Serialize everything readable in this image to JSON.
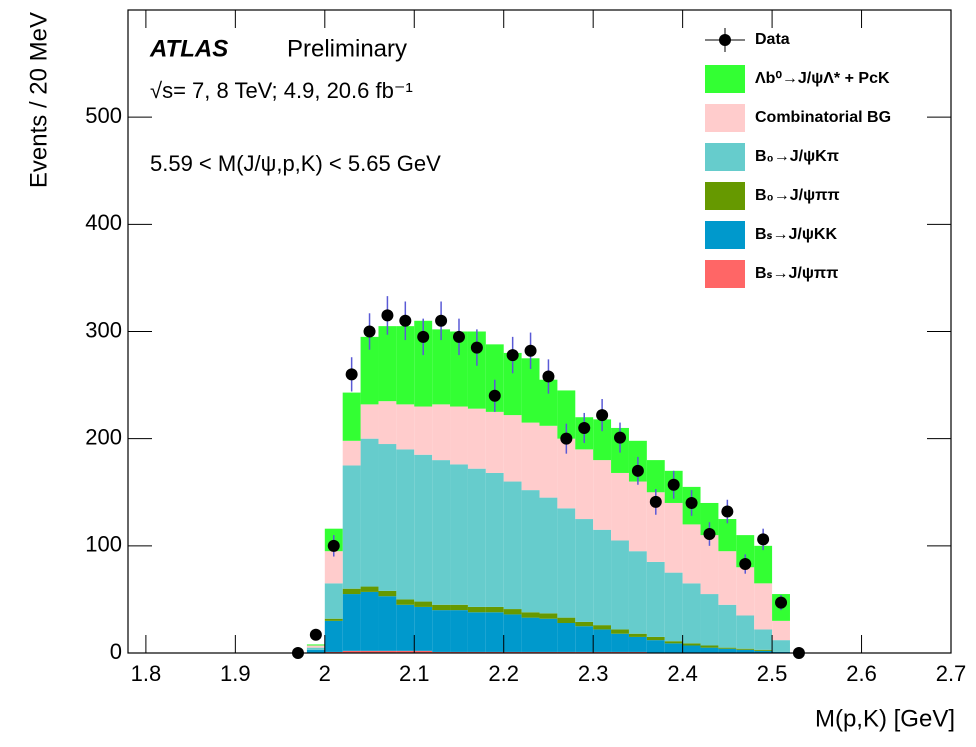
{
  "chart_data": {
    "type": "histogram",
    "stacked": true,
    "annotations": [
      "ATLAS",
      "Preliminary",
      "√s= 7, 8 TeV; 4.9, 20.6 fb⁻¹",
      "5.59 < M(J/ψ,p,K) < 5.65 GeV"
    ],
    "x_label": "M(p,K) [GeV]",
    "y_label": "Events / 20 MeV",
    "xlim": [
      1.78,
      2.7
    ],
    "ylim": [
      0,
      600
    ],
    "xticks": [
      1.8,
      1.9,
      2,
      2.1,
      2.2,
      2.3,
      2.4,
      2.5,
      2.6,
      2.7
    ],
    "yticks": [
      0,
      100,
      200,
      300,
      400,
      500
    ],
    "legend": "upper right",
    "bins": [
      1.96,
      1.98,
      2.0,
      2.02,
      2.04,
      2.06,
      2.08,
      2.1,
      2.12,
      2.14,
      2.16,
      2.18,
      2.2,
      2.22,
      2.24,
      2.26,
      2.28,
      2.3,
      2.32,
      2.34,
      2.36,
      2.38,
      2.4,
      2.42,
      2.44,
      2.46,
      2.48,
      2.5,
      2.52,
      2.54
    ],
    "series": [
      {
        "name": "Bₛ→J/ψππ",
        "color": "#ff6666",
        "values": [
          0,
          0,
          1,
          2,
          2,
          2,
          2,
          2,
          1,
          1,
          1,
          1,
          1,
          1,
          1,
          1,
          1,
          1,
          1,
          1,
          0,
          0,
          0,
          0,
          0,
          0,
          0,
          0,
          0
        ]
      },
      {
        "name": "Bₛ→J/ψKK",
        "color": "#0099cc",
        "values": [
          0,
          3,
          29,
          53,
          55,
          51,
          43,
          41,
          39,
          39,
          37,
          37,
          35,
          32,
          31,
          27,
          24,
          21,
          17,
          14,
          12,
          9,
          7,
          5,
          4,
          3,
          2,
          1,
          0
        ]
      },
      {
        "name": "B₀→J/ψππ",
        "color": "#669900",
        "values": [
          0,
          0,
          2,
          5,
          5,
          5,
          5,
          5,
          5,
          5,
          5,
          5,
          5,
          5,
          5,
          5,
          4,
          4,
          4,
          3,
          3,
          2,
          2,
          2,
          1,
          1,
          1,
          0,
          0
        ]
      },
      {
        "name": "B₀→J/ψKπ",
        "color": "#66cccc",
        "values": [
          0,
          2,
          33,
          115,
          138,
          137,
          140,
          137,
          135,
          131,
          129,
          125,
          119,
          114,
          108,
          102,
          96,
          89,
          83,
          77,
          70,
          64,
          56,
          48,
          40,
          31,
          19,
          11,
          0
        ]
      },
      {
        "name": "Combinatorial BG",
        "color": "#ffcccc",
        "values": [
          0,
          2,
          30,
          23,
          32,
          40,
          42,
          45,
          52,
          54,
          56,
          57,
          62,
          63,
          67,
          65,
          65,
          65,
          63,
          65,
          65,
          65,
          55,
          55,
          50,
          45,
          43,
          18,
          0
        ]
      },
      {
        "name": "Λb⁰→J/ψΛ* + PcK",
        "color": "#33ff33",
        "values": [
          0,
          1,
          21,
          45,
          63,
          70,
          73,
          80,
          70,
          70,
          72,
          63,
          58,
          60,
          43,
          45,
          30,
          38,
          42,
          38,
          30,
          30,
          35,
          30,
          30,
          30,
          35,
          25,
          0
        ]
      }
    ],
    "data": {
      "name": "Data",
      "color": "#000000",
      "error_color": "#5a5ad6",
      "values": [
        0,
        17,
        100,
        260,
        300,
        315,
        310,
        295,
        310,
        295,
        285,
        240,
        278,
        282,
        258,
        200,
        210,
        222,
        201,
        170,
        141,
        157,
        140,
        111,
        132,
        83,
        106,
        47,
        0
      ],
      "errors": [
        1,
        4,
        10,
        16,
        17,
        18,
        18,
        17,
        18,
        17,
        17,
        15,
        17,
        17,
        16,
        14,
        14,
        15,
        14,
        13,
        12,
        13,
        12,
        11,
        11,
        9,
        10,
        7,
        1
      ]
    }
  }
}
